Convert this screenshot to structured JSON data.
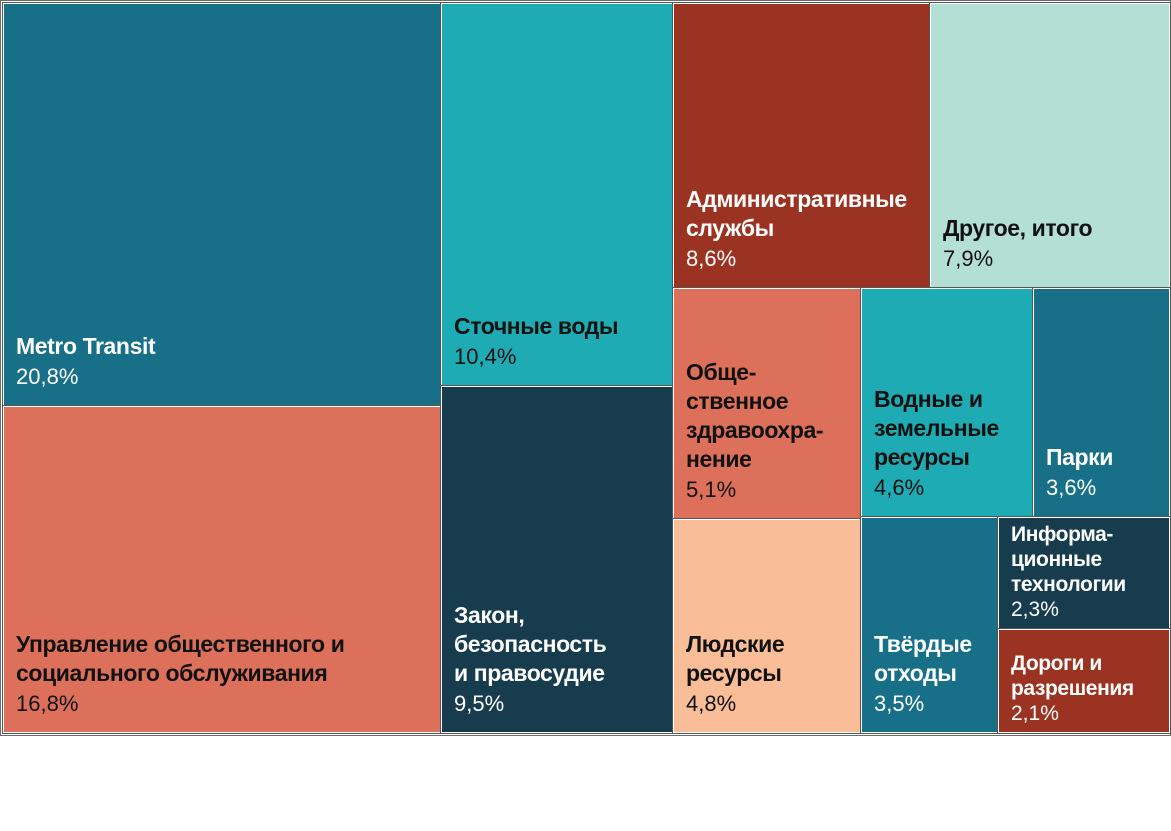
{
  "chart_data": {
    "type": "treemap",
    "title": "",
    "items": [
      {
        "label": "Metro Transit",
        "value": 20.8,
        "value_label": "20,8%",
        "color": "#176f88",
        "text_color": "#ffffff"
      },
      {
        "label": "Управление общественного и\nсоциального обслуживания",
        "value": 16.8,
        "value_label": "16,8%",
        "color": "#dc705a",
        "text_color": "#111111"
      },
      {
        "label": "Сточные воды",
        "value": 10.4,
        "value_label": "10,4%",
        "color": "#1fabb3",
        "text_color": "#111111"
      },
      {
        "label": "Закон,\nбезопасность\nи правосудие",
        "value": 9.5,
        "value_label": "9,5%",
        "color": "#173c4e",
        "text_color": "#ffffff"
      },
      {
        "label": "Административные\nслужбы",
        "value": 8.6,
        "value_label": "8,6%",
        "color": "#9b3322",
        "text_color": "#ffffff"
      },
      {
        "label": "Другое, итого",
        "value": 7.9,
        "value_label": "7,9%",
        "color": "#b4dfd4",
        "text_color": "#111111"
      },
      {
        "label": "Обще-\nственное\nздравоохра-\nнение",
        "value": 5.1,
        "value_label": "5,1%",
        "color": "#dc705a",
        "text_color": "#111111"
      },
      {
        "label": "Водные и\nземельные\nресурсы",
        "value": 4.6,
        "value_label": "4,6%",
        "color": "#1fabb3",
        "text_color": "#111111"
      },
      {
        "label": "Парки",
        "value": 3.6,
        "value_label": "3,6%",
        "color": "#176f88",
        "text_color": "#ffffff"
      },
      {
        "label": "Людские\nресурсы",
        "value": 4.8,
        "value_label": "4,8%",
        "color": "#f9bd98",
        "text_color": "#111111"
      },
      {
        "label": "Твёрдые\nотходы",
        "value": 3.5,
        "value_label": "3,5%",
        "color": "#176f88",
        "text_color": "#ffffff"
      },
      {
        "label": "Информа-\nционные\nтехнологии",
        "value": 2.3,
        "value_label": "2,3%",
        "color": "#173c4e",
        "text_color": "#ffffff"
      },
      {
        "label": "Дороги и\nразрешения",
        "value": 2.1,
        "value_label": "2,1%",
        "color": "#9b3322",
        "text_color": "#ffffff"
      }
    ]
  }
}
